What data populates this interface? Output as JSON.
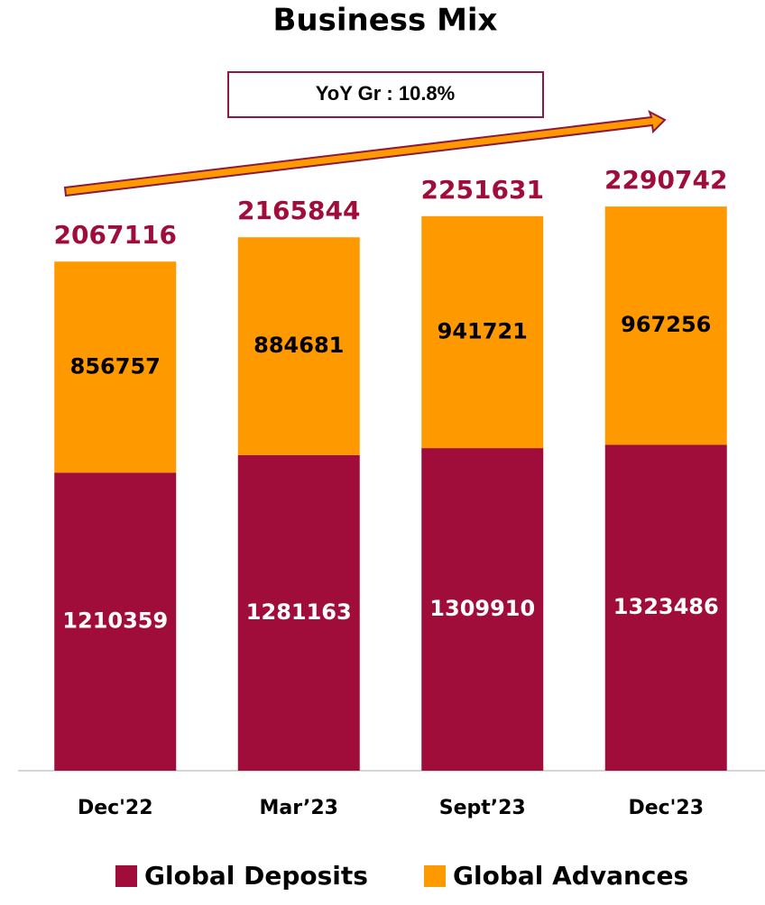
{
  "chart_data": {
    "type": "stacked_bar",
    "title": "Business Mix",
    "annotation": "YoY Gr : 10.8%",
    "categories": [
      "Dec'22",
      "Mar’23",
      "Sept’23",
      "Dec'23"
    ],
    "series": [
      {
        "name": "Global Deposits",
        "color": "#a00d3b",
        "values": [
          1210359,
          1281163,
          1309910,
          1323486
        ]
      },
      {
        "name": "Global Advances",
        "color": "#ff9900",
        "values": [
          856757,
          884681,
          941721,
          967256
        ]
      }
    ],
    "totals": [
      2067116,
      2165844,
      2251631,
      2290742
    ],
    "ylim": [
      0,
      3100000
    ]
  }
}
